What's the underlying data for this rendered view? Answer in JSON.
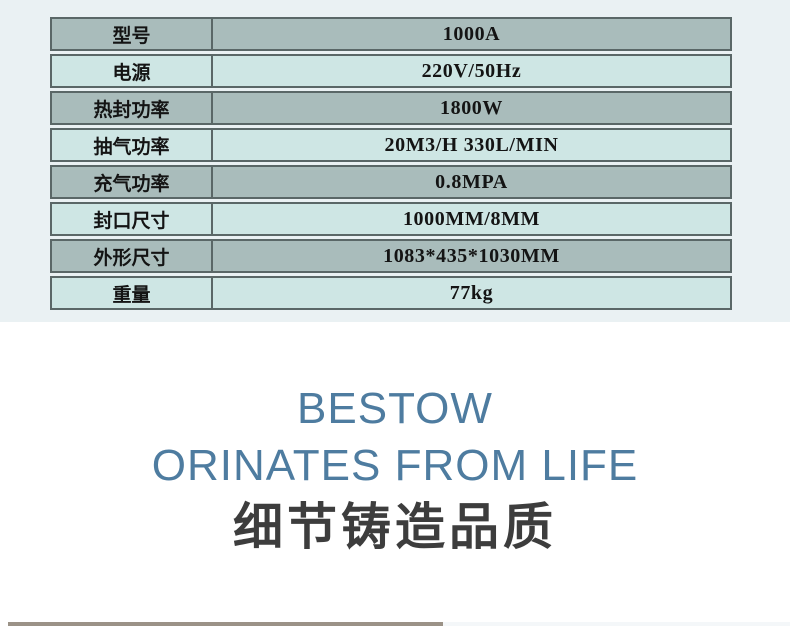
{
  "colors": {
    "page_band": "#eaf1f3",
    "row_dark": "#a9bcbb",
    "row_light": "#cee6e4",
    "table_border": "#5a6767",
    "accent_blue": "#4e7ca0",
    "cn_dark": "#3d3d3d",
    "strip_tan": "#9b9287",
    "strip_light": "#f4f7f9"
  },
  "spec_table": {
    "rows": [
      {
        "label": "型号",
        "value": "1000A"
      },
      {
        "label": "电源",
        "value": "220V/50Hz"
      },
      {
        "label": "热封功率",
        "value": "1800W"
      },
      {
        "label": "抽气功率",
        "value": "20M3/H 330L/MIN"
      },
      {
        "label": "充气功率",
        "value": "0.8MPA"
      },
      {
        "label": "封口尺寸",
        "value": "1000MM/8MM"
      },
      {
        "label": "外形尺寸",
        "value": "1083*435*1030MM"
      },
      {
        "label": "重量",
        "value": "77kg"
      }
    ]
  },
  "tagline": {
    "line1": "BESTOW",
    "line2": "ORINATES FROM LIFE",
    "line3": "细节铸造品质"
  }
}
